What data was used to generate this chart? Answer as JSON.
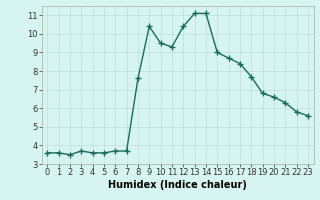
{
  "x": [
    0,
    1,
    2,
    3,
    4,
    5,
    6,
    7,
    8,
    9,
    10,
    11,
    12,
    13,
    14,
    15,
    16,
    17,
    18,
    19,
    20,
    21,
    22,
    23
  ],
  "y": [
    3.6,
    3.6,
    3.5,
    3.7,
    3.6,
    3.6,
    3.7,
    3.7,
    7.6,
    10.4,
    9.5,
    9.3,
    10.4,
    11.1,
    11.1,
    9.0,
    8.7,
    8.4,
    7.7,
    6.8,
    6.6,
    6.3,
    5.8,
    5.6
  ],
  "line_color": "#1a6b5a",
  "marker": "+",
  "marker_size": 4,
  "background_color": "#d7f5f0",
  "grid_color": "#c0ddd8",
  "xlabel": "Humidex (Indice chaleur)",
  "xlim": [
    -0.5,
    23.5
  ],
  "ylim": [
    3.0,
    11.5
  ],
  "yticks": [
    3,
    4,
    5,
    6,
    7,
    8,
    9,
    10,
    11
  ],
  "xticks": [
    0,
    1,
    2,
    3,
    4,
    5,
    6,
    7,
    8,
    9,
    10,
    11,
    12,
    13,
    14,
    15,
    16,
    17,
    18,
    19,
    20,
    21,
    22,
    23
  ],
  "xlabel_fontsize": 7,
  "tick_fontsize": 6,
  "line_width": 1.0
}
